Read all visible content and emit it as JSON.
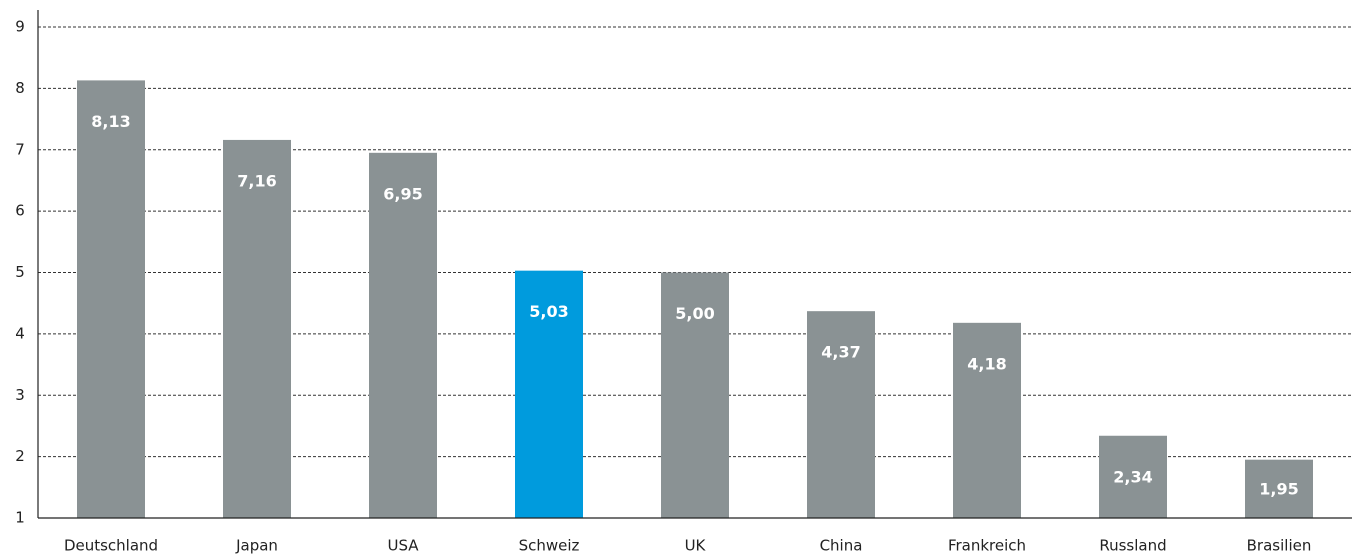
{
  "chart_data": {
    "type": "bar",
    "categories": [
      "Deutschland",
      "Japan",
      "USA",
      "Schweiz",
      "UK",
      "China",
      "Frankreich",
      "Russland",
      "Brasilien"
    ],
    "values": [
      8.13,
      7.16,
      6.95,
      5.03,
      5.0,
      4.37,
      4.18,
      2.34,
      1.95
    ],
    "value_labels": [
      "8,13",
      "7,16",
      "6,95",
      "5,03",
      "5,00",
      "4,37",
      "4,18",
      "2,34",
      "1,95"
    ],
    "colors": [
      "#8a9294",
      "#8a9294",
      "#8a9294",
      "#009bdd",
      "#8a9294",
      "#8a9294",
      "#8a9294",
      "#8a9294",
      "#8a9294"
    ],
    "ylim": [
      1,
      9
    ],
    "yticks": [
      1,
      2,
      3,
      4,
      5,
      6,
      7,
      8,
      9
    ],
    "grid": true
  }
}
